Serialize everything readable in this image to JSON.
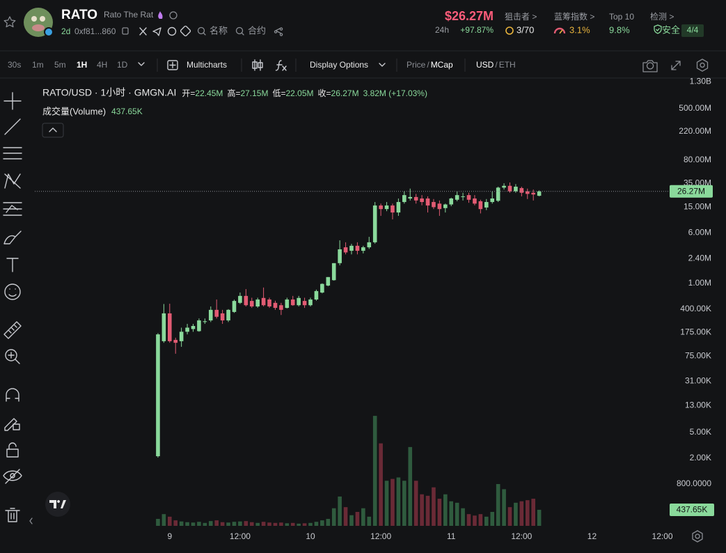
{
  "header": {
    "symbol": "RATO",
    "name": "Rato The Rat",
    "age": "2d",
    "address": "0xf81...860",
    "search_name": "名称",
    "search_contract": "合约",
    "market_cap": "$26.27M",
    "change_label": "24h",
    "change": "+97.87%",
    "stats": [
      {
        "label": "狙击者 >",
        "value": "3/70"
      },
      {
        "label": "蓝筹指数 >",
        "value": "3.1%"
      },
      {
        "label": "Top 10",
        "value": "9.8%"
      },
      {
        "label": "检测 >",
        "value": "安全",
        "badge": "4/4"
      }
    ]
  },
  "toolbar": {
    "intervals": [
      "30s",
      "1m",
      "5m",
      "1H",
      "4H",
      "1D"
    ],
    "active_interval": "1H",
    "multicharts": "Multicharts",
    "display_options": "Display Options",
    "separator": "/",
    "price": "Price",
    "mcap": "MCap",
    "usd": "USD",
    "eth": "ETH"
  },
  "chart_data": {
    "type": "candlestick",
    "pair": "RATO/USD · 1小时 · GMGN.AI",
    "ohlc": [
      {
        "label": "开=",
        "value": "22.45M"
      },
      {
        "label": "高=",
        "value": "27.15M"
      },
      {
        "label": "低=",
        "value": "22.05M"
      },
      {
        "label": "收=",
        "value": "26.27M"
      }
    ],
    "change": "3.82M (+17.03%)",
    "volume_title": "成交量(Volume)",
    "last_volume_label": "437.65K",
    "last_price": 26270000,
    "last_price_label": "26.27M",
    "log_scale": true,
    "grid": false,
    "up_color": "#8ad99b",
    "down_color": "#e25b73",
    "volume_up_color": "#2f5b3e",
    "volume_down_color": "#6a2a36",
    "xlim": [
      -23,
      85
    ],
    "xticks": [
      {
        "value": 0,
        "label": "9"
      },
      {
        "value": 12,
        "label": "12:00"
      },
      {
        "value": 24,
        "label": "10"
      },
      {
        "value": 36,
        "label": "12:00"
      },
      {
        "value": 48,
        "label": "11"
      },
      {
        "value": 60,
        "label": "12:00"
      },
      {
        "value": 72,
        "label": "12"
      },
      {
        "value": 84,
        "label": "12:00"
      }
    ],
    "ylim": [
      160,
      1550000000
    ],
    "yticks": [
      {
        "value": 1300000000,
        "label": "1.30B"
      },
      {
        "value": 500000000,
        "label": "500.00M"
      },
      {
        "value": 220000000,
        "label": "220.00M"
      },
      {
        "value": 80000000,
        "label": "80.00M"
      },
      {
        "value": 35000000,
        "label": "35.00M"
      },
      {
        "value": 15000000,
        "label": "15.00M"
      },
      {
        "value": 6000000,
        "label": "6.00M"
      },
      {
        "value": 2400000,
        "label": "2.40M"
      },
      {
        "value": 1000000,
        "label": "1.00M"
      },
      {
        "value": 400000,
        "label": "400.00K"
      },
      {
        "value": 175000,
        "label": "175.00K"
      },
      {
        "value": 75000,
        "label": "75.00K"
      },
      {
        "value": 31000,
        "label": "31.00K"
      },
      {
        "value": 13000,
        "label": "13.00K"
      },
      {
        "value": 5000,
        "label": "5.00K"
      },
      {
        "value": 2000,
        "label": "2.00K"
      },
      {
        "value": 800,
        "label": "800.0000"
      }
    ],
    "vlim": [
      0,
      3800000
    ],
    "x": [
      -2,
      -1,
      0,
      1,
      2,
      3,
      4,
      5,
      6,
      7,
      8,
      9,
      10,
      11,
      12,
      13,
      14,
      15,
      16,
      17,
      18,
      19,
      20,
      21,
      22,
      23,
      24,
      25,
      26,
      27,
      28,
      29,
      30,
      31,
      32,
      33,
      34,
      35,
      36,
      37,
      38,
      39,
      40,
      41,
      42,
      43,
      44,
      45,
      46,
      47,
      48,
      49,
      50,
      51,
      52,
      53,
      54,
      55,
      56,
      57,
      58,
      59,
      60,
      61,
      62,
      63
    ],
    "open": [
      2150,
      128000,
      344000,
      134000,
      128000,
      179000,
      197000,
      183000,
      253000,
      268000,
      390000,
      344000,
      268000,
      362000,
      500000,
      640000,
      535000,
      440000,
      595000,
      563000,
      500000,
      460000,
      418000,
      563000,
      460000,
      535000,
      460000,
      563000,
      721000,
      925000,
      1120000,
      2050000,
      3600000,
      3180000,
      3800000,
      3180000,
      3600000,
      4300000,
      15900000,
      14000000,
      15900000,
      12400000,
      18000000,
      20400000,
      21500000,
      20400000,
      20400000,
      18000000,
      17000000,
      14500000,
      16500000,
      19500000,
      21500000,
      23000000,
      20400000,
      18500000,
      14800000,
      18000000,
      18800000,
      30000000,
      32000000,
      26300000,
      29500000,
      26300000,
      25000000,
      22450000
    ],
    "high": [
      170000,
      480000,
      485000,
      145000,
      207000,
      237000,
      237000,
      287000,
      287000,
      440000,
      563000,
      390000,
      400000,
      560000,
      721000,
      815000,
      600000,
      600000,
      862000,
      600000,
      540000,
      500000,
      600000,
      640000,
      640000,
      600000,
      600000,
      800000,
      1000000,
      1250000,
      2050000,
      4610000,
      4300000,
      4070000,
      4300000,
      3800000,
      5220000,
      18000000,
      17000000,
      18000000,
      17000000,
      20400000,
      26300000,
      29000000,
      24000000,
      23000000,
      22000000,
      20000000,
      19000000,
      17000000,
      21000000,
      26300000,
      25000000,
      25000000,
      23000000,
      19500000,
      20000000,
      26300000,
      31000000,
      35000000,
      36000000,
      34000000,
      31000000,
      29000000,
      28000000,
      27150000
    ],
    "low": [
      2050,
      121000,
      121000,
      82000,
      105000,
      163000,
      179000,
      179000,
      237000,
      253000,
      287000,
      237000,
      253000,
      350000,
      480000,
      440000,
      418000,
      420000,
      440000,
      418000,
      390000,
      325000,
      410000,
      450000,
      440000,
      418000,
      440000,
      540000,
      700000,
      900000,
      1100000,
      1900000,
      2800000,
      2800000,
      2800000,
      2900000,
      3400000,
      4100000,
      11000000,
      13000000,
      9700000,
      11000000,
      17000000,
      19000000,
      17000000,
      16000000,
      12400000,
      14000000,
      11000000,
      12400000,
      15500000,
      18500000,
      19000000,
      17500000,
      16000000,
      12000000,
      13500000,
      17000000,
      18000000,
      28000000,
      25000000,
      25000000,
      22000000,
      20000000,
      19000000,
      22050000
    ],
    "close": [
      163000,
      344000,
      128000,
      121000,
      179000,
      207000,
      220000,
      268000,
      260000,
      390000,
      305000,
      268000,
      390000,
      535000,
      640000,
      460000,
      440000,
      563000,
      460000,
      440000,
      418000,
      390000,
      563000,
      460000,
      595000,
      460000,
      563000,
      760000,
      980000,
      1250000,
      2050000,
      3350000,
      3000000,
      3800000,
      3180000,
      3600000,
      4300000,
      15900000,
      14000000,
      15900000,
      12400000,
      18000000,
      23000000,
      21500000,
      19000000,
      18000000,
      15900000,
      15000000,
      14000000,
      16500000,
      20400000,
      23000000,
      22000000,
      19500000,
      17000000,
      14000000,
      18000000,
      20400000,
      30000000,
      32000000,
      26300000,
      31000000,
      25000000,
      24000000,
      23500000,
      26270000
    ],
    "volume": [
      190000,
      320000,
      250000,
      150000,
      120000,
      100000,
      90000,
      110000,
      80000,
      130000,
      150000,
      100000,
      90000,
      110000,
      120000,
      130000,
      100000,
      80000,
      110000,
      90000,
      80000,
      90000,
      70000,
      80000,
      60000,
      70000,
      80000,
      110000,
      150000,
      190000,
      480000,
      800000,
      510000,
      290000,
      380000,
      480000,
      250000,
      3000000,
      2250000,
      1230000,
      1280000,
      1320000,
      1230000,
      2150000,
      1230000,
      860000,
      820000,
      1050000,
      740000,
      860000,
      670000,
      630000,
      480000,
      320000,
      280000,
      320000,
      250000,
      380000,
      1140000,
      1000000,
      510000,
      630000,
      670000,
      700000,
      740000,
      437650
    ]
  }
}
